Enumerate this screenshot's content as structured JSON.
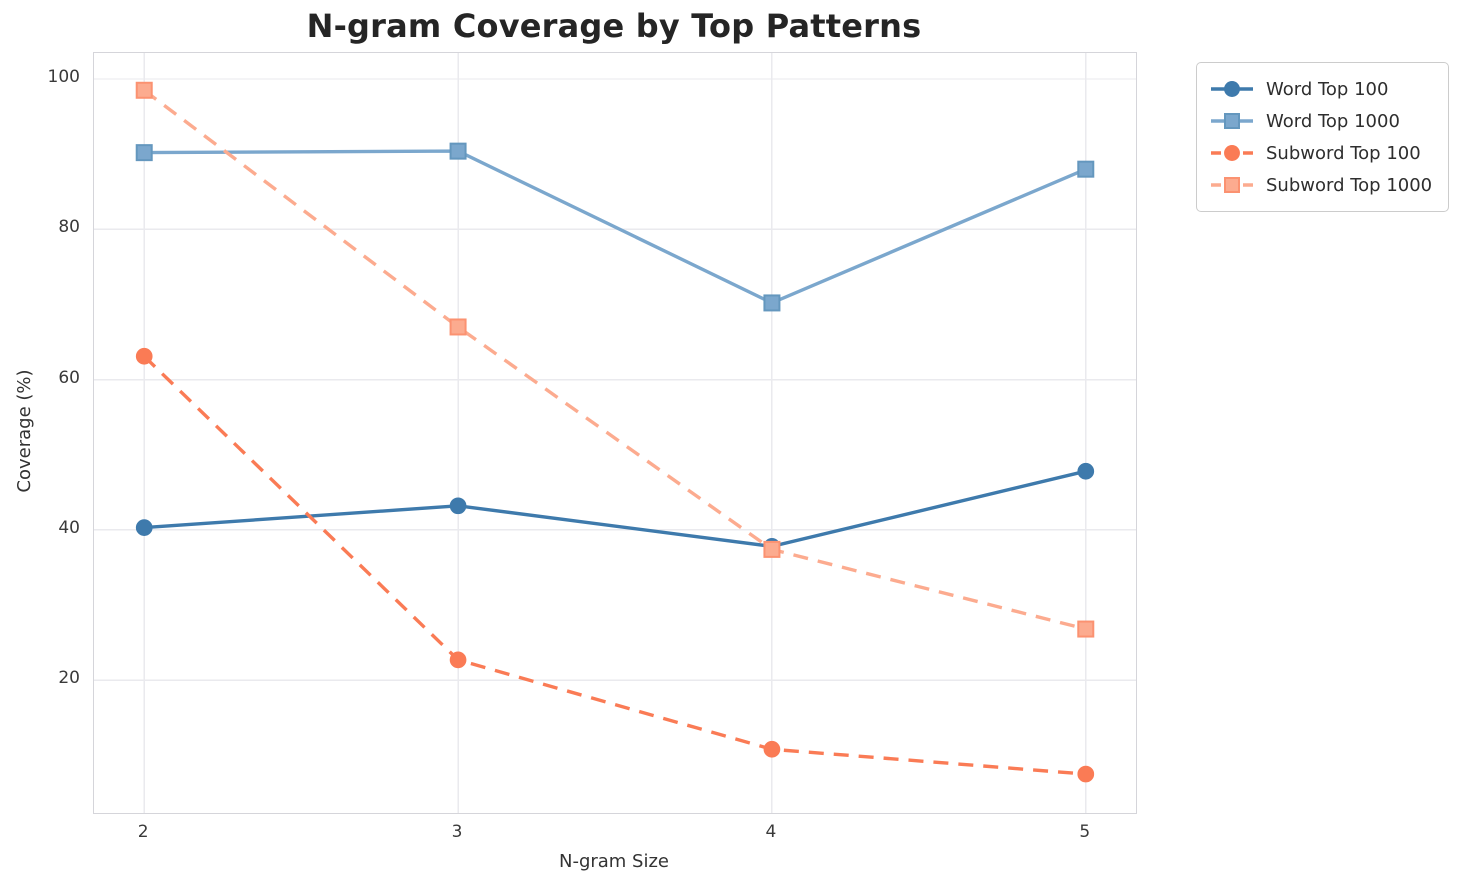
{
  "title": "N-gram Coverage by Top Patterns",
  "axes": {
    "xlabel": "N-gram Size",
    "ylabel": "Coverage (%)",
    "x_tick_labels": [
      "2",
      "3",
      "4",
      "5"
    ],
    "y_tick_labels": [
      "20",
      "40",
      "60",
      "80",
      "100"
    ]
  },
  "legend": {
    "position": "outside-top-right",
    "labels": [
      "Word Top 100",
      "Word Top 1000",
      "Subword Top 100",
      "Subword Top 1000"
    ]
  },
  "colors": {
    "word_top_100": "#3E7AAC",
    "word_top_1000": "#7BA7CD",
    "word_top_1000_edge": "#6497BE",
    "subword_top_100": "#FA7B55",
    "subword_top_1000": "#FCAB8F",
    "subword_top_1000_edge": "#FB9271",
    "grid": "#eaeaee",
    "spine": "#d5d5da",
    "title_text": "#252525",
    "tick_text": "#3a3a3a"
  },
  "chart_data": {
    "type": "line",
    "title": "N-gram Coverage by Top Patterns",
    "xlabel": "N-gram Size",
    "ylabel": "Coverage (%)",
    "x": [
      2,
      3,
      4,
      5
    ],
    "series": [
      {
        "name": "Word Top 100",
        "values": [
          40.3,
          43.2,
          37.8,
          47.8
        ],
        "color": "#3E7AAC",
        "edge": "#3E7AAC",
        "dash": "solid",
        "marker": "circle"
      },
      {
        "name": "Word Top 1000",
        "values": [
          90.2,
          90.4,
          70.2,
          88.0
        ],
        "color": "#7BA7CD",
        "edge": "#6497BE",
        "dash": "solid",
        "marker": "square"
      },
      {
        "name": "Subword Top 100",
        "values": [
          63.1,
          22.7,
          10.8,
          7.5
        ],
        "color": "#FA7B55",
        "edge": "#FA7B55",
        "dash": "dashed",
        "marker": "circle"
      },
      {
        "name": "Subword Top 1000",
        "values": [
          98.5,
          67.0,
          37.4,
          26.8
        ],
        "color": "#FCAB8F",
        "edge": "#FB9271",
        "dash": "dashed",
        "marker": "square"
      }
    ],
    "y_ticks": [
      20,
      40,
      60,
      80,
      100
    ],
    "xlim": [
      1.84,
      5.16
    ],
    "ylim": [
      2.32,
      103.46
    ],
    "grid": true,
    "legend_position": "outside-top-right"
  }
}
